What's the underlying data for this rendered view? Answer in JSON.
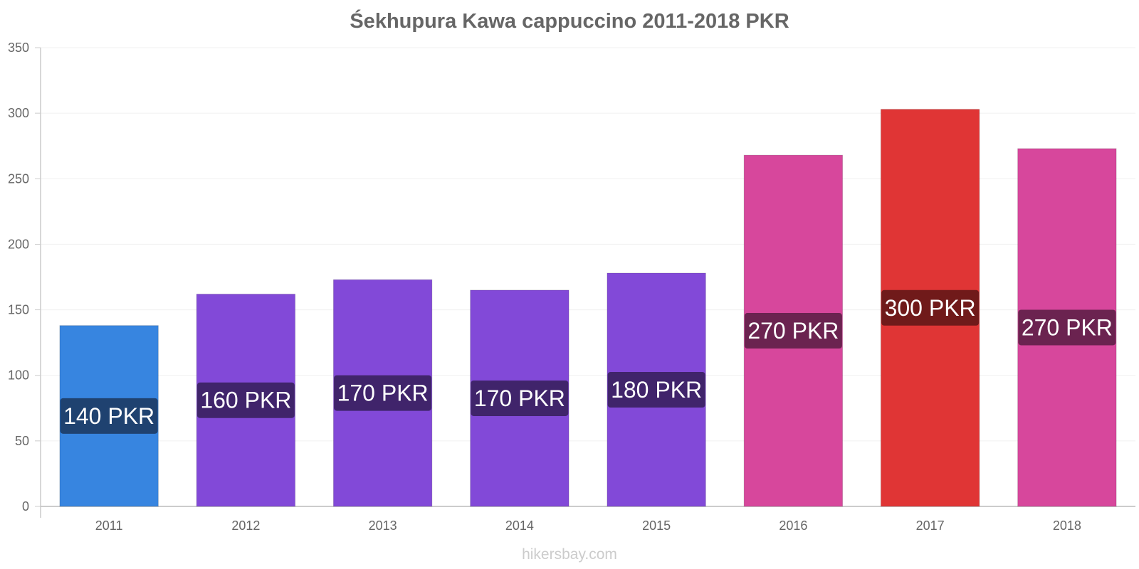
{
  "chart_data": {
    "type": "bar",
    "title": "Śekhupura Kawa cappuccino 2011-2018 PKR",
    "xlabel": "",
    "ylabel": "",
    "categories": [
      "2011",
      "2012",
      "2013",
      "2014",
      "2015",
      "2016",
      "2017",
      "2018"
    ],
    "values": [
      138,
      162,
      173,
      165,
      178,
      268,
      303,
      273
    ],
    "data_labels": [
      "140 PKR",
      "160 PKR",
      "170 PKR",
      "170 PKR",
      "180 PKR",
      "270 PKR",
      "300 PKR",
      "270 PKR"
    ],
    "bar_colors": [
      "#3785e0",
      "#8249d8",
      "#8249d8",
      "#8249d8",
      "#8249d8",
      "#d7479c",
      "#e03535",
      "#d7479c"
    ],
    "label_bg_colors": [
      "#1f4270",
      "#40246b",
      "#40246b",
      "#40246b",
      "#40246b",
      "#6b2350",
      "#701a1a",
      "#6b2350"
    ],
    "ylim": [
      0,
      350
    ],
    "yticks": [
      0,
      50,
      100,
      150,
      200,
      250,
      300,
      350
    ],
    "grid": true,
    "legend": "none"
  },
  "watermark": "hikersbay.com"
}
